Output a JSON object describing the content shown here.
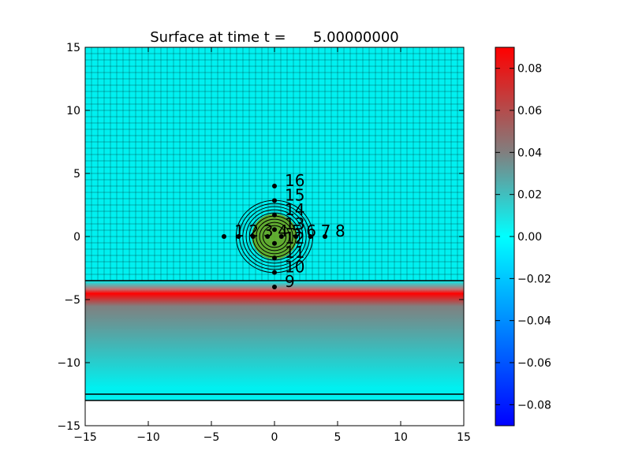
{
  "chart_data": {
    "type": "heatmap",
    "title": "Surface at time t =      5.00000000",
    "xlim": [
      -15,
      15
    ],
    "ylim": [
      -15,
      15
    ],
    "x_ticks": [
      "−15",
      "−10",
      "−5",
      "0",
      "5",
      "10",
      "15"
    ],
    "x_tick_values": [
      -15,
      -10,
      -5,
      0,
      5,
      10,
      15
    ],
    "y_ticks": [
      "−15",
      "−10",
      "−5",
      "0",
      "5",
      "10",
      "15"
    ],
    "y_tick_values": [
      -15,
      -10,
      -5,
      0,
      5,
      10,
      15
    ],
    "grid_spacing": 0.5,
    "surface_bands": {
      "upper_value": 0.015,
      "red_band": {
        "y_from": -9.0,
        "y_to": -4.0,
        "value": 0.09
      },
      "fade_to": -12.0,
      "domain_lines_y": [
        -3.5,
        -12.5,
        -13.0
      ]
    },
    "hump": {
      "center": [
        0,
        0
      ],
      "radius": 2.5,
      "contour_count": 9
    },
    "gauges": [
      {
        "label": "1",
        "x": -4.0,
        "y": 0.0
      },
      {
        "label": "2",
        "x": -2.85,
        "y": 0.0
      },
      {
        "label": "3",
        "x": -1.7,
        "y": 0.0
      },
      {
        "label": "4",
        "x": -0.55,
        "y": 0.0
      },
      {
        "label": "5",
        "x": 0.55,
        "y": 0.0
      },
      {
        "label": "6",
        "x": 1.7,
        "y": 0.0
      },
      {
        "label": "7",
        "x": 2.85,
        "y": 0.0
      },
      {
        "label": "8",
        "x": 4.0,
        "y": 0.0
      },
      {
        "label": "9",
        "x": 0.0,
        "y": -4.0
      },
      {
        "label": "10",
        "x": 0.0,
        "y": -2.85
      },
      {
        "label": "11",
        "x": 0.0,
        "y": -1.7
      },
      {
        "label": "12",
        "x": 0.0,
        "y": -0.55
      },
      {
        "label": "13",
        "x": 0.0,
        "y": 0.55
      },
      {
        "label": "14",
        "x": 0.0,
        "y": 1.7
      },
      {
        "label": "15",
        "x": 0.0,
        "y": 2.85
      },
      {
        "label": "16",
        "x": 0.0,
        "y": 4.0
      }
    ],
    "colorbar": {
      "range": [
        -0.09,
        0.09
      ],
      "ticks": [
        "−0.08",
        "−0.06",
        "−0.04",
        "−0.02",
        "0.00",
        "0.02",
        "0.04",
        "0.06",
        "0.08"
      ],
      "tick_values": [
        -0.08,
        -0.06,
        -0.04,
        -0.02,
        0.0,
        0.02,
        0.04,
        0.06,
        0.08
      ],
      "colors": {
        "low": "#0000ff",
        "mid_low": "#00ffff",
        "mid_high": "#808080",
        "high": "#ff0000"
      }
    },
    "colors": {
      "surface": "#00f0f0",
      "hump": "#6aa51e",
      "red": "#ff0000",
      "grid": "#000000"
    }
  }
}
